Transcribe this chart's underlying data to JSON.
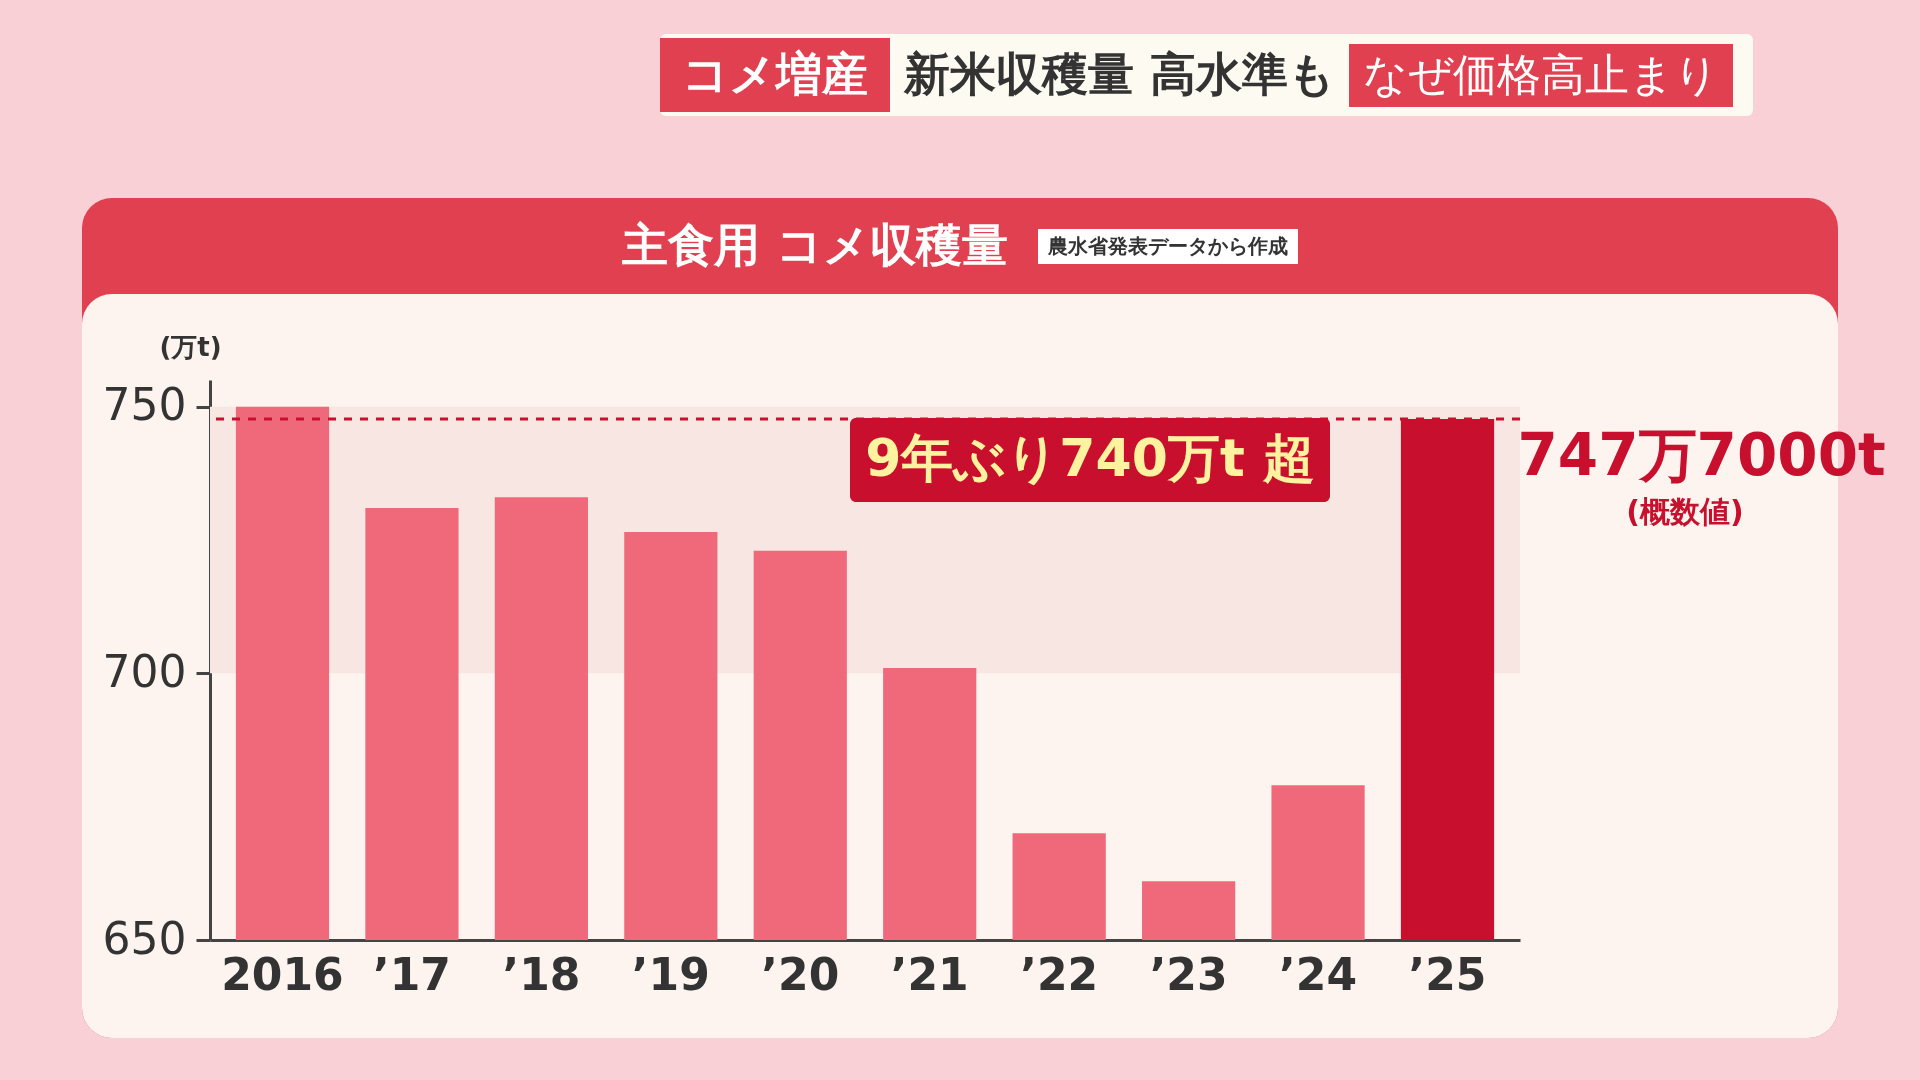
{
  "chart_data": {
    "type": "bar",
    "title": "主食用 コメ収穫量",
    "subtitle": "農水省発表データから作成",
    "ylabel": "(万t)",
    "annotations": [
      "コメ増産",
      "新米収穫量 高水準も",
      "なぜ価格高止まり",
      "9年ぶり740万t 超",
      {
        "text": "747万7000t",
        "x": "’25",
        "y": 747.7
      },
      "(概数値)"
    ],
    "categories": [
      "2016",
      "’17",
      "’18",
      "’19",
      "’20",
      "’21",
      "’22",
      "’23",
      "’24",
      "’25"
    ],
    "values": [
      750,
      731,
      733,
      726.5,
      723,
      701,
      670,
      661,
      679,
      747.7
    ],
    "colors": [
      "#f0697a",
      "#f0697a",
      "#f0697a",
      "#f0697a",
      "#f0697a",
      "#f0697a",
      "#f0697a",
      "#f0697a",
      "#f0697a",
      "#c8102e"
    ],
    "ylim": [
      650,
      755
    ],
    "yticks": [
      650,
      700,
      750
    ],
    "ref_lines": [
      {
        "axis": "y",
        "value": 747.7,
        "color": "#c8102e",
        "line_style": "dashed"
      }
    ],
    "bands": [
      {
        "axis": "y",
        "from": 700,
        "to": 750,
        "color": "#f7e6e1"
      }
    ]
  }
}
